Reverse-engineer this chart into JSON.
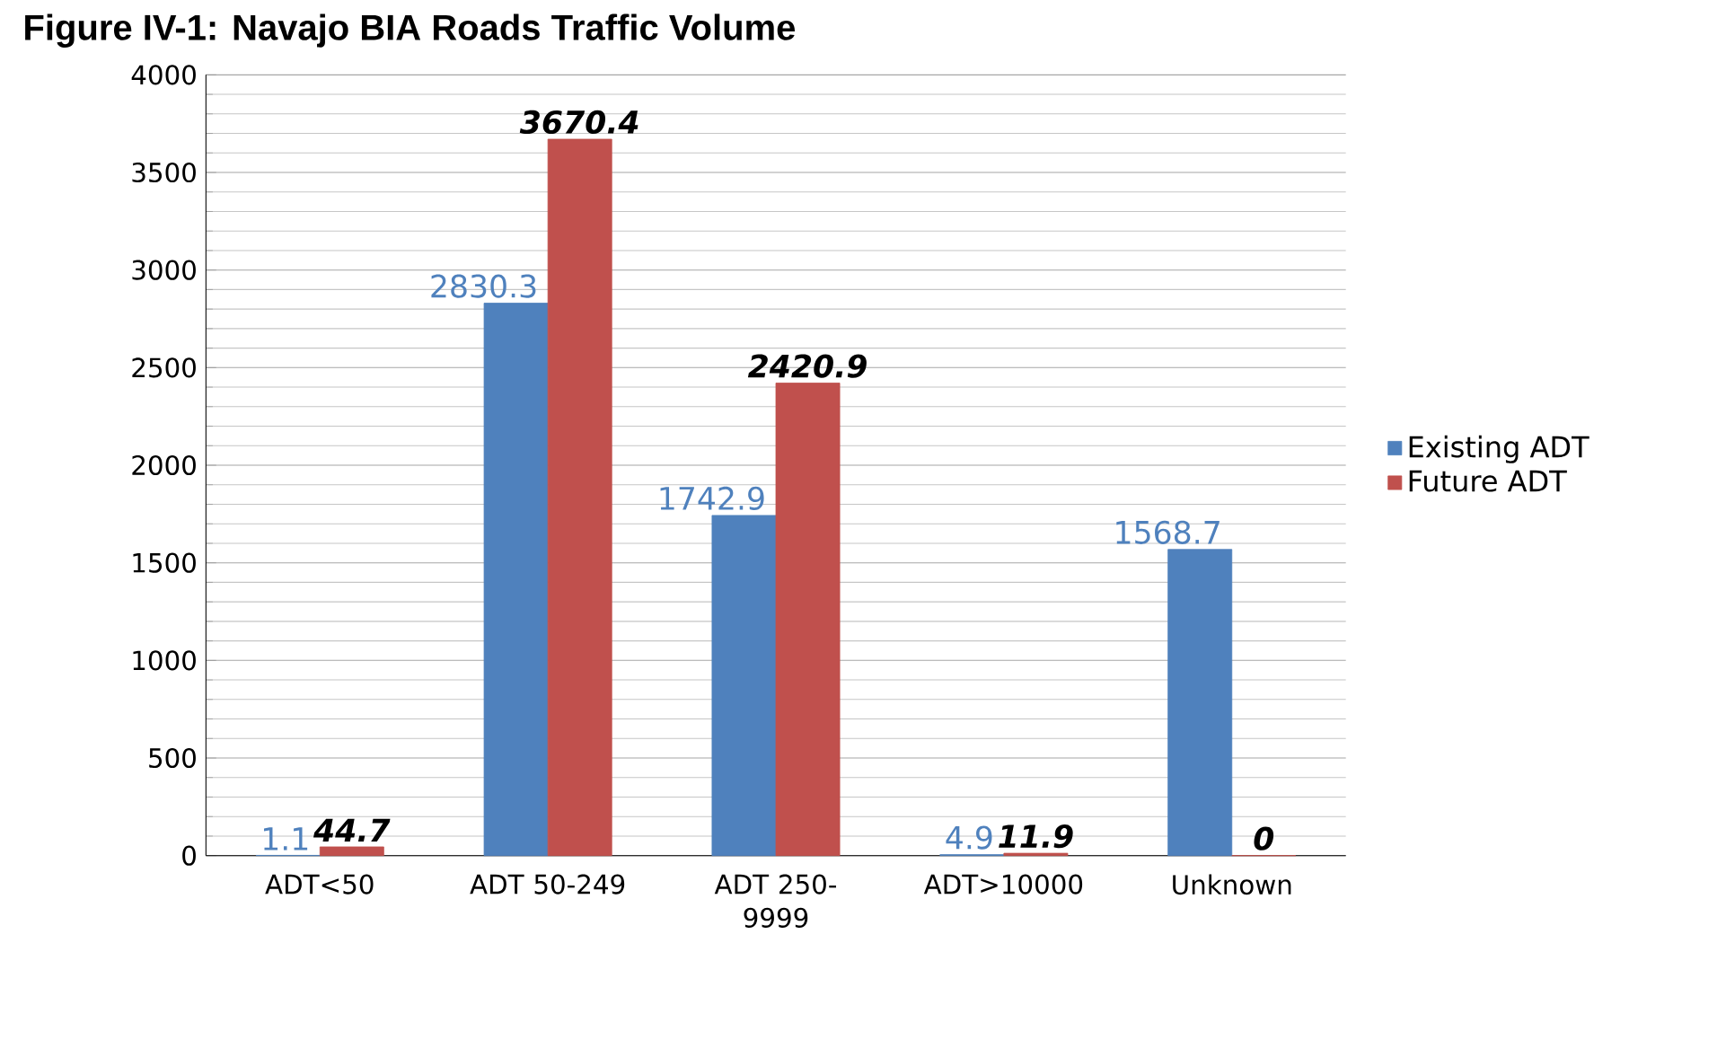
{
  "chart_data": {
    "type": "bar",
    "title": "Figure IV-1:  Navajo BIA Roads Traffic Volume",
    "categories": [
      "ADT<50",
      "ADT 50-249",
      "ADT 250-9999",
      "ADT>10000",
      "Unknown"
    ],
    "series": [
      {
        "name": "Existing ADT",
        "color": "#4f81bd",
        "values": [
          1.1,
          2830.3,
          1742.9,
          4.9,
          1568.7
        ]
      },
      {
        "name": "Future ADT",
        "color": "#c0504d",
        "values": [
          44.7,
          3670.4,
          2420.9,
          11.9,
          0
        ]
      }
    ],
    "ylim": [
      0,
      4000
    ],
    "yticks": [
      0,
      500,
      1000,
      1500,
      2000,
      2500,
      3000,
      3500,
      4000
    ],
    "grid": "y",
    "legend": "right",
    "data_labels": true
  }
}
